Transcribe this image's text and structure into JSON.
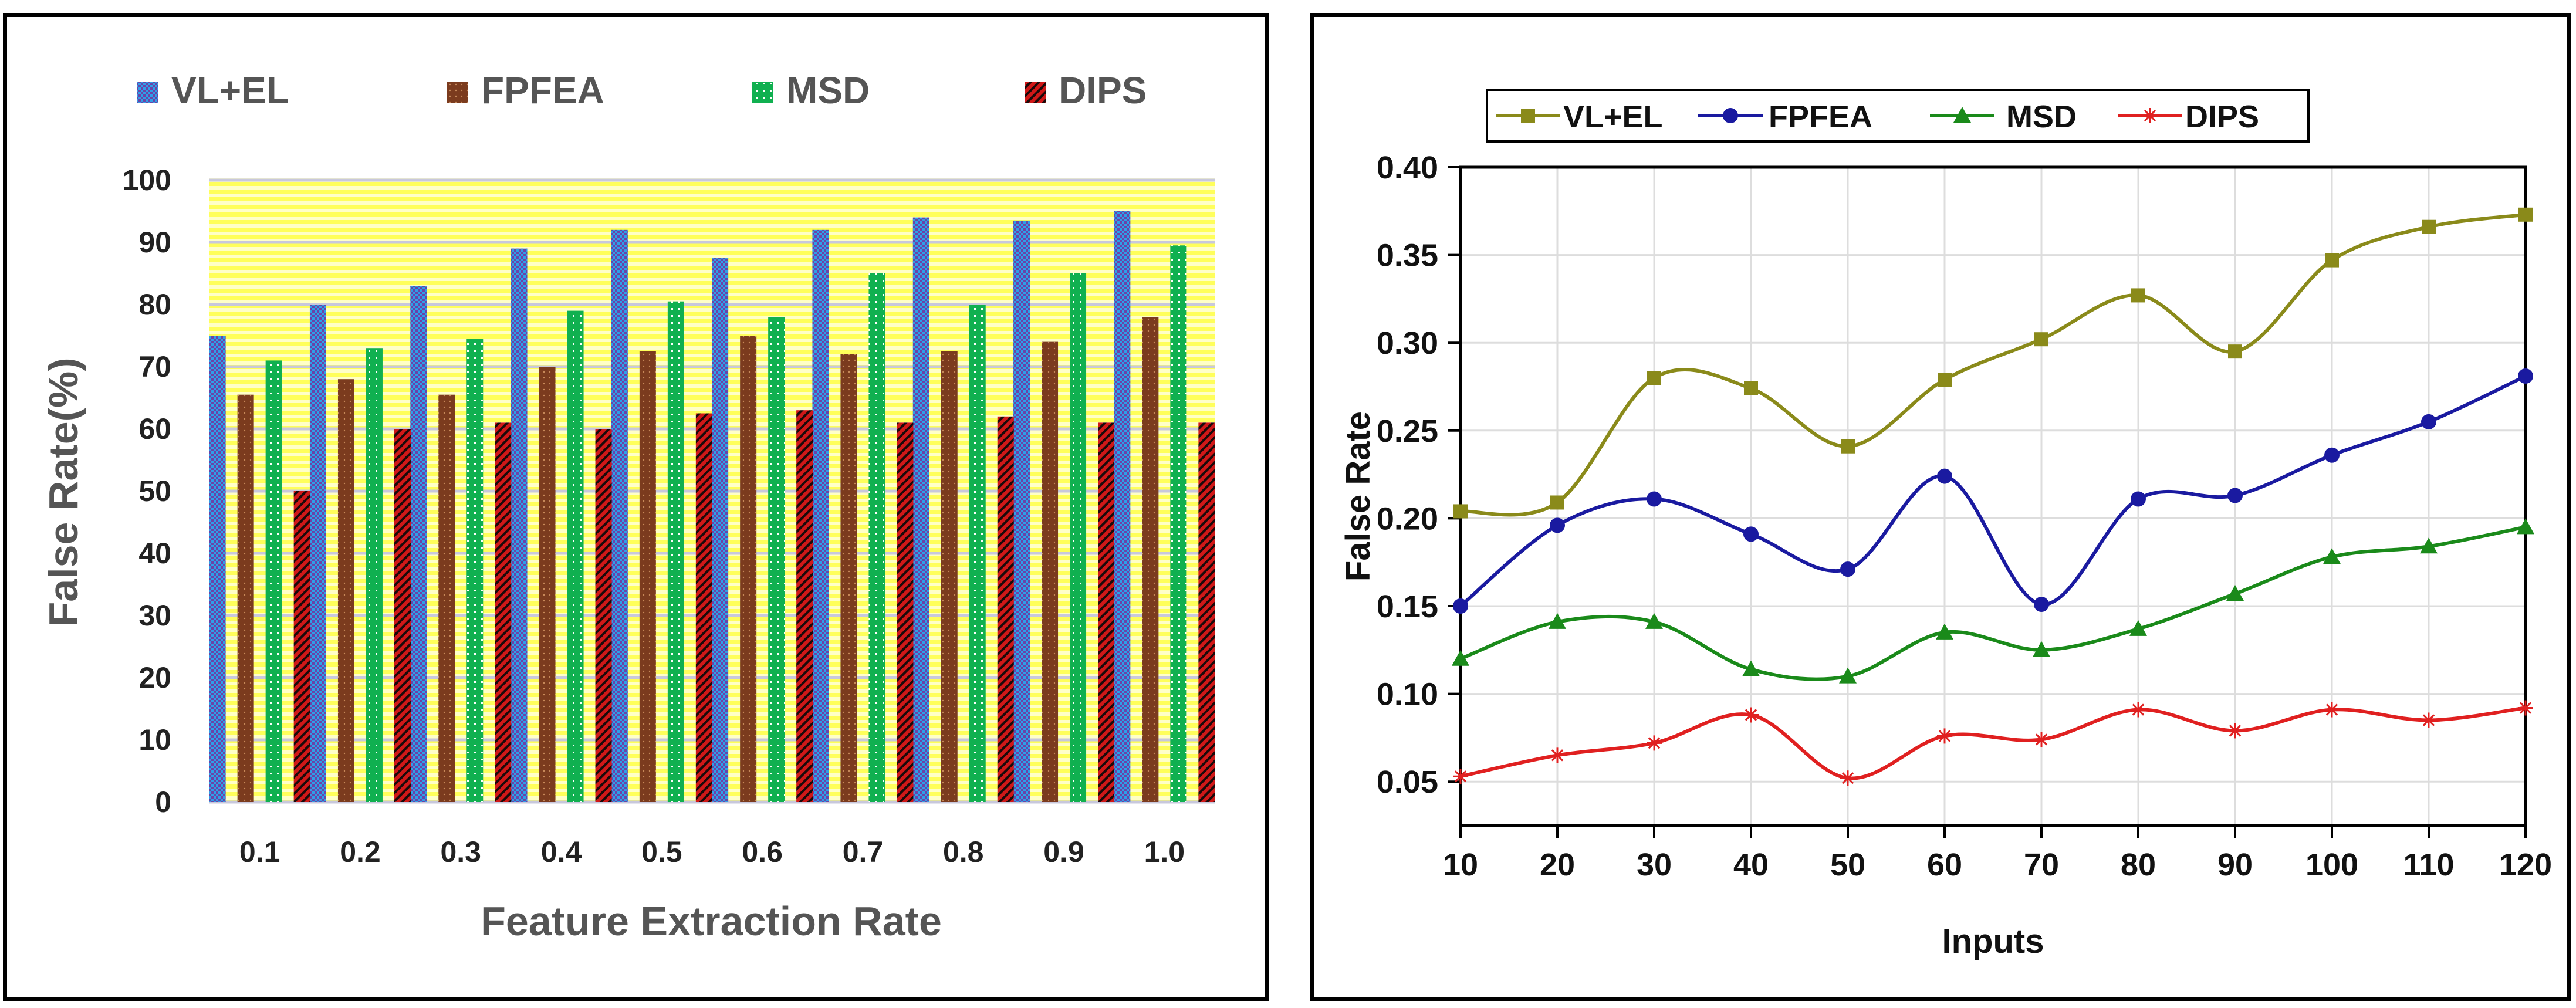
{
  "chart_data": [
    {
      "type": "bar",
      "xlabel": "Feature Extraction Rate",
      "ylabel": "False Rate(%)",
      "categories": [
        "0.1",
        "0.2",
        "0.3",
        "0.4",
        "0.5",
        "0.6",
        "0.7",
        "0.8",
        "0.9",
        "1.0"
      ],
      "yticks": [
        "0",
        "10",
        "20",
        "30",
        "40",
        "50",
        "60",
        "70",
        "80",
        "90",
        "100"
      ],
      "ylim": [
        0,
        100
      ],
      "legend_position": "top",
      "grid": true,
      "series": [
        {
          "name": "VL+EL",
          "color": "#7b4fa0",
          "values": [
            75,
            80,
            83,
            89,
            92,
            87.5,
            92,
            94,
            93.5,
            95
          ]
        },
        {
          "name": "FPFEA",
          "color": "#7b3b1e",
          "values": [
            65.5,
            68,
            65.5,
            70,
            72.5,
            75,
            72,
            72.5,
            74,
            78
          ]
        },
        {
          "name": "MSD",
          "color": "#10b050",
          "values": [
            71,
            73,
            74.5,
            79,
            80.5,
            78,
            85,
            80,
            85,
            89.5
          ]
        },
        {
          "name": "DIPS",
          "color": "#d01818",
          "values": [
            50,
            60,
            61,
            60,
            62.5,
            63,
            61,
            62,
            61,
            61
          ]
        }
      ]
    },
    {
      "type": "line",
      "xlabel": "Inputs",
      "ylabel": "False Rate",
      "x": [
        10,
        20,
        30,
        40,
        50,
        60,
        70,
        80,
        90,
        100,
        110,
        120
      ],
      "xticks": [
        "10",
        "20",
        "30",
        "40",
        "50",
        "60",
        "70",
        "80",
        "90",
        "100",
        "110",
        "120"
      ],
      "yticks": [
        "0.05",
        "0.10",
        "0.15",
        "0.20",
        "0.25",
        "0.30",
        "0.35",
        "0.40"
      ],
      "xlim": [
        10,
        120
      ],
      "ylim": [
        0.025,
        0.4
      ],
      "legend_position": "top",
      "grid": true,
      "series": [
        {
          "name": "VL+EL",
          "color": "#8a8a1a",
          "marker": "square",
          "values": [
            0.204,
            0.209,
            0.28,
            0.274,
            0.241,
            0.279,
            0.302,
            0.327,
            0.295,
            0.347,
            0.366,
            0.373
          ]
        },
        {
          "name": "FPFEA",
          "color": "#1a1aa0",
          "marker": "circle",
          "values": [
            0.15,
            0.196,
            0.211,
            0.191,
            0.171,
            0.224,
            0.151,
            0.211,
            0.213,
            0.236,
            0.255,
            0.281
          ]
        },
        {
          "name": "MSD",
          "color": "#1a8a1a",
          "marker": "triangle",
          "values": [
            0.12,
            0.141,
            0.141,
            0.114,
            0.11,
            0.135,
            0.125,
            0.137,
            0.157,
            0.178,
            0.184,
            0.195
          ]
        },
        {
          "name": "DIPS",
          "color": "#e02020",
          "marker": "asterisk",
          "values": [
            0.053,
            0.065,
            0.072,
            0.088,
            0.052,
            0.076,
            0.074,
            0.091,
            0.079,
            0.091,
            0.085,
            0.092
          ]
        }
      ]
    }
  ]
}
